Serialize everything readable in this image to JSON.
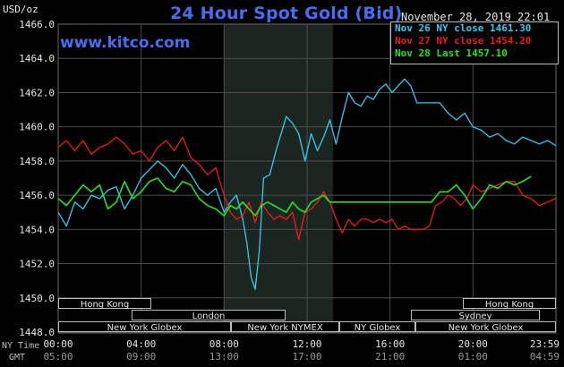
{
  "header": {
    "title": "24 Hour Spot Gold (Bid)",
    "timestamp": "November 28, 2019 22:01",
    "unit": "USD/oz",
    "watermark": "www.kitco.com"
  },
  "axis_row_labels": {
    "ny_time": "NY Time",
    "gmt": "GMT"
  },
  "colors": {
    "background": "#000000",
    "title": "#4a6df0",
    "grid": "#4d4d4d",
    "nymex_shade": "#1c2620",
    "session_bar": "#bdbdbd",
    "session_bar_fill": "#000000"
  },
  "sessions": [
    {
      "label": "Hong Kong",
      "row": 0
    },
    {
      "label": "Hong Kong",
      "row": 0
    },
    {
      "label": "London",
      "row": 1
    },
    {
      "label": "Sydney",
      "row": 1
    },
    {
      "label": "New York Globex",
      "row": 2
    },
    {
      "label": "New York NYMEX",
      "row": 2
    },
    {
      "label": "NY Globex",
      "row": 2
    },
    {
      "label": "New York Globex",
      "row": 2
    }
  ],
  "chart_data": {
    "type": "line",
    "title": "24 Hour Spot Gold (Bid)",
    "ylabel": "USD/oz",
    "ylim": [
      1448.0,
      1466.0
    ],
    "y_ticks": [
      "1466.0",
      "1464.0",
      "1462.0",
      "1460.0",
      "1458.0",
      "1456.0",
      "1454.0",
      "1452.0",
      "1450.0",
      "1448.0"
    ],
    "xlim": [
      0,
      24
    ],
    "x_ticks_ny": [
      "00:00",
      "04:00",
      "08:00",
      "12:00",
      "16:00",
      "20:00",
      "23:59"
    ],
    "x_ticks_gmt": [
      "05:00",
      "09:00",
      "13:00",
      "17:00",
      "21:00",
      "01:00",
      "04:59"
    ],
    "nymex_session_hours": [
      8,
      13.25
    ],
    "grid": true,
    "legend_position": "top-right",
    "series": [
      {
        "name": "Nov 26 NY close 1461.30",
        "color": "#38c8f0",
        "x": [
          0,
          0.4,
          0.8,
          1.2,
          1.6,
          2.0,
          2.4,
          2.8,
          3.2,
          3.6,
          4.0,
          4.4,
          4.8,
          5.2,
          5.6,
          6.0,
          6.4,
          6.8,
          7.2,
          7.6,
          8.0,
          8.3,
          8.6,
          8.9,
          9.1,
          9.3,
          9.5,
          9.7,
          9.9,
          10.2,
          10.5,
          10.8,
          11.0,
          11.3,
          11.6,
          11.9,
          12.2,
          12.5,
          12.8,
          13.1,
          13.4,
          13.7,
          14.0,
          14.3,
          14.6,
          14.9,
          15.2,
          15.5,
          15.8,
          16.1,
          16.4,
          16.7,
          17.0,
          17.3,
          17.6,
          18.0,
          18.4,
          18.8,
          19.2,
          19.6,
          20.0,
          20.4,
          20.8,
          21.2,
          21.6,
          22.0,
          22.4,
          22.8,
          23.2,
          23.6,
          23.99
        ],
        "values": [
          1455.0,
          1454.2,
          1455.6,
          1455.2,
          1456.0,
          1455.8,
          1456.3,
          1456.5,
          1455.2,
          1456.0,
          1457.0,
          1457.5,
          1458.0,
          1457.6,
          1457.0,
          1457.8,
          1457.2,
          1456.4,
          1456.0,
          1456.4,
          1455.0,
          1455.6,
          1456.0,
          1454.6,
          1453.2,
          1451.2,
          1450.5,
          1452.8,
          1457.0,
          1457.2,
          1458.6,
          1459.8,
          1460.6,
          1460.2,
          1459.6,
          1458.0,
          1459.6,
          1458.6,
          1459.4,
          1460.4,
          1459.0,
          1460.6,
          1462.0,
          1461.4,
          1461.2,
          1461.8,
          1461.6,
          1462.2,
          1462.5,
          1462.0,
          1462.4,
          1462.8,
          1462.4,
          1461.4,
          1461.4,
          1461.4,
          1461.4,
          1460.8,
          1460.4,
          1460.8,
          1460.0,
          1459.8,
          1459.4,
          1459.6,
          1459.2,
          1459.0,
          1459.4,
          1459.2,
          1459.0,
          1459.2,
          1458.9
        ]
      },
      {
        "name": "Nov 27 NY close 1454.20",
        "color": "#ee1a1a",
        "x": [
          0,
          0.4,
          0.8,
          1.2,
          1.6,
          2.0,
          2.4,
          2.8,
          3.2,
          3.6,
          4.0,
          4.4,
          4.8,
          5.2,
          5.6,
          6.0,
          6.4,
          6.8,
          7.2,
          7.6,
          8.0,
          8.3,
          8.6,
          8.9,
          9.2,
          9.5,
          9.8,
          10.1,
          10.4,
          10.7,
          11.0,
          11.3,
          11.6,
          11.9,
          12.2,
          12.5,
          12.8,
          13.1,
          13.4,
          13.7,
          14.0,
          14.3,
          14.6,
          14.9,
          15.2,
          15.5,
          15.8,
          16.1,
          16.4,
          16.7,
          17.0,
          17.3,
          17.6,
          17.9,
          18.2,
          18.5,
          18.8,
          19.1,
          19.4,
          19.7,
          20.0,
          20.4,
          20.8,
          21.2,
          21.6,
          22.0,
          22.4,
          22.8,
          23.2,
          23.6,
          23.99
        ],
        "values": [
          1458.8,
          1459.2,
          1458.6,
          1459.2,
          1458.4,
          1458.8,
          1459.0,
          1459.4,
          1459.0,
          1458.4,
          1458.6,
          1458.0,
          1458.8,
          1459.2,
          1458.6,
          1459.4,
          1458.2,
          1457.8,
          1457.2,
          1457.6,
          1456.0,
          1455.0,
          1454.6,
          1454.8,
          1455.6,
          1454.4,
          1455.6,
          1455.0,
          1454.6,
          1454.8,
          1454.6,
          1455.0,
          1453.4,
          1455.0,
          1455.2,
          1455.6,
          1456.2,
          1455.6,
          1454.6,
          1453.8,
          1454.6,
          1454.2,
          1454.6,
          1454.6,
          1454.4,
          1454.6,
          1454.4,
          1454.6,
          1454.0,
          1454.2,
          1454.0,
          1454.0,
          1454.0,
          1454.2,
          1455.4,
          1455.6,
          1456.0,
          1455.8,
          1455.4,
          1455.8,
          1456.6,
          1456.2,
          1456.4,
          1456.6,
          1456.8,
          1456.8,
          1456.0,
          1455.8,
          1455.4,
          1455.6,
          1455.8
        ]
      },
      {
        "name": "Nov 28 Last 1457.10",
        "color": "#26e026",
        "x": [
          0,
          0.4,
          0.8,
          1.2,
          1.6,
          2.0,
          2.4,
          2.8,
          3.2,
          3.6,
          4.0,
          4.4,
          4.8,
          5.2,
          5.6,
          6.0,
          6.4,
          6.8,
          7.2,
          7.6,
          8.0,
          8.3,
          8.6,
          8.9,
          9.2,
          9.5,
          9.8,
          10.1,
          10.4,
          10.7,
          11.0,
          11.3,
          11.6,
          11.9,
          12.2,
          12.5,
          12.8,
          13.1,
          13.4,
          13.7,
          14.0,
          14.5,
          15.0,
          15.5,
          16.0,
          16.5,
          17.0,
          17.5,
          18.0,
          18.4,
          18.8,
          19.2,
          19.6,
          20.0,
          20.4,
          20.8,
          21.2,
          21.6,
          22.0,
          22.4,
          22.8
        ],
        "values": [
          1455.8,
          1455.4,
          1456.0,
          1456.6,
          1456.2,
          1456.6,
          1455.2,
          1455.6,
          1456.8,
          1455.8,
          1456.2,
          1456.8,
          1457.0,
          1456.4,
          1456.2,
          1456.8,
          1456.6,
          1455.8,
          1455.4,
          1455.2,
          1454.8,
          1455.4,
          1455.2,
          1455.6,
          1455.2,
          1454.8,
          1455.4,
          1455.6,
          1455.4,
          1455.2,
          1455.0,
          1455.6,
          1455.2,
          1455.0,
          1455.6,
          1455.8,
          1456.0,
          1455.6,
          1455.6,
          1455.6,
          1455.6,
          1455.6,
          1455.6,
          1455.6,
          1455.6,
          1455.6,
          1455.6,
          1455.6,
          1455.6,
          1456.2,
          1456.2,
          1456.6,
          1456.0,
          1455.2,
          1455.8,
          1456.6,
          1456.4,
          1456.8,
          1456.6,
          1456.8,
          1457.1
        ]
      }
    ]
  }
}
